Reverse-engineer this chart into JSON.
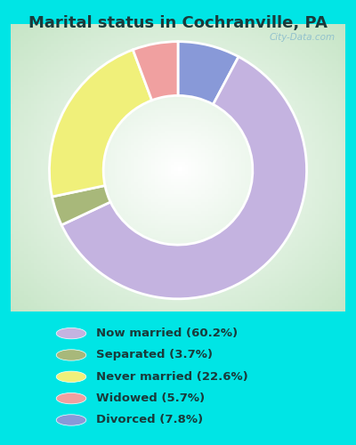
{
  "title": "Marital status in Cochranville, PA",
  "categories": [
    "Now married",
    "Separated",
    "Never married",
    "Widowed",
    "Divorced"
  ],
  "values": [
    60.2,
    3.7,
    22.6,
    5.7,
    7.8
  ],
  "colors": [
    "#c4b3e0",
    "#a8b87a",
    "#f0f07a",
    "#f0a0a0",
    "#8899d8"
  ],
  "legend_labels": [
    "Now married (60.2%)",
    "Separated (3.7%)",
    "Never married (22.6%)",
    "Widowed (5.7%)",
    "Divorced (7.8%)"
  ],
  "bg_color": "#00e5e5",
  "chart_bg_light": "#f0faf0",
  "watermark": "City-Data.com",
  "title_fontsize": 13,
  "title_color": "#1a3a3a",
  "donut_width": 0.42,
  "legend_text_color": "#1a3a3a"
}
